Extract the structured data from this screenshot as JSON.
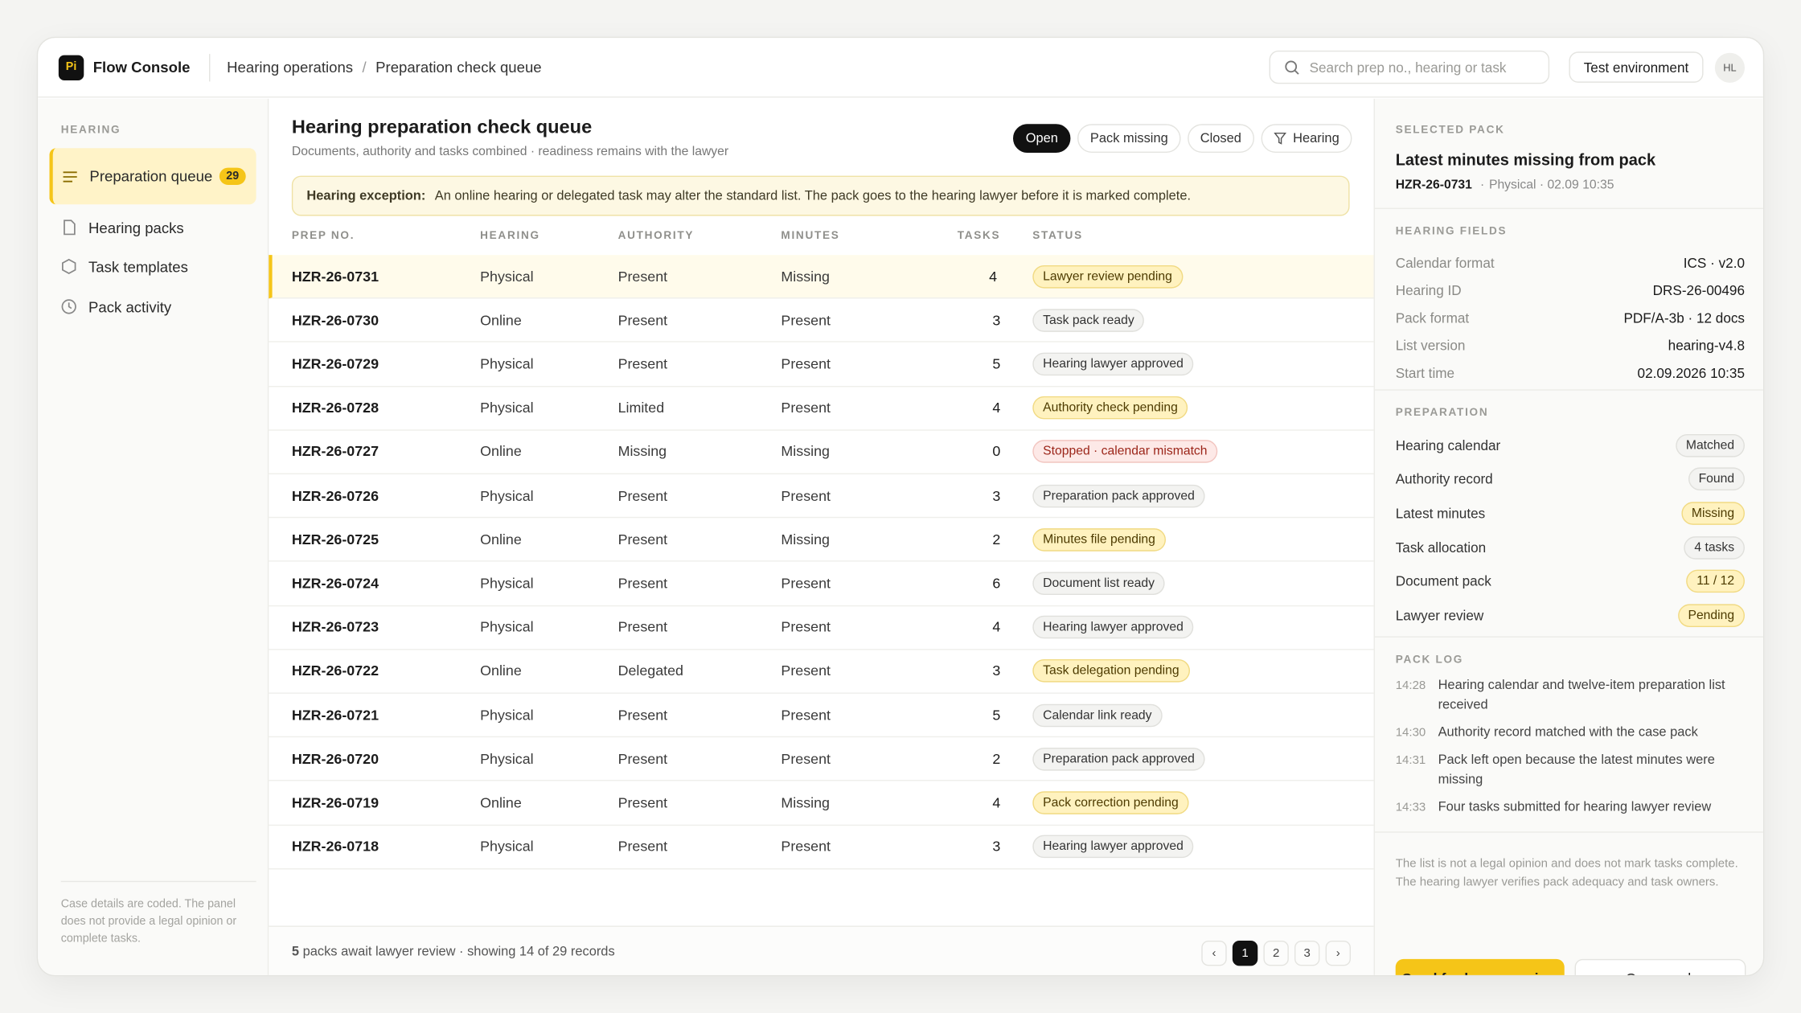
{
  "header": {
    "brand_mark": "Pi",
    "brand": "Flow Console",
    "breadcrumb": [
      "Hearing operations",
      "Preparation check queue"
    ],
    "breadcrumb_separator": "/",
    "search_placeholder": "Search prep no., hearing or task",
    "environment": "Test environment",
    "user_initials": "HL"
  },
  "sidebar": {
    "section": "HEARING",
    "nav": [
      {
        "label": "Preparation queue",
        "badge": 29
      },
      {
        "label": "Hearing packs"
      },
      {
        "label": "Task templates"
      },
      {
        "label": "Pack activity"
      }
    ],
    "active": 0,
    "footnote": "Case details are coded. The panel does not provide a legal opinion or complete tasks."
  },
  "queue": {
    "title": "Hearing preparation check queue",
    "subtitle": "Documents, authority and tasks combined · readiness remains with the lawyer",
    "filters": [
      "Open",
      "Pack missing",
      "Closed",
      "Hearing"
    ],
    "active_filter": 0,
    "banner": {
      "label": "Hearing exception:",
      "text": "An online hearing or delegated task may alter the standard list. The pack goes to the hearing lawyer before it is marked complete."
    },
    "columns": [
      "PREP NO.",
      "HEARING",
      "AUTHORITY",
      "MINUTES",
      "TASKS",
      "STATUS"
    ],
    "selected_row": 0,
    "rows": [
      [
        "HZR-26-0731",
        "Physical",
        "Present",
        "Missing",
        4,
        "Lawyer review pending",
        "amber"
      ],
      [
        "HZR-26-0730",
        "Online",
        "Present",
        "Present",
        3,
        "Task pack ready",
        "gray"
      ],
      [
        "HZR-26-0729",
        "Physical",
        "Present",
        "Present",
        5,
        "Hearing lawyer approved",
        "gray"
      ],
      [
        "HZR-26-0728",
        "Physical",
        "Limited",
        "Present",
        4,
        "Authority check pending",
        "amber"
      ],
      [
        "HZR-26-0727",
        "Online",
        "Missing",
        "Missing",
        0,
        "Stopped · calendar mismatch",
        "red"
      ],
      [
        "HZR-26-0726",
        "Physical",
        "Present",
        "Present",
        3,
        "Preparation pack approved",
        "gray"
      ],
      [
        "HZR-26-0725",
        "Online",
        "Present",
        "Missing",
        2,
        "Minutes file pending",
        "amber"
      ],
      [
        "HZR-26-0724",
        "Physical",
        "Present",
        "Present",
        6,
        "Document list ready",
        "gray"
      ],
      [
        "HZR-26-0723",
        "Physical",
        "Present",
        "Present",
        4,
        "Hearing lawyer approved",
        "gray"
      ],
      [
        "HZR-26-0722",
        "Online",
        "Delegated",
        "Present",
        3,
        "Task delegation pending",
        "amber"
      ],
      [
        "HZR-26-0721",
        "Physical",
        "Present",
        "Present",
        5,
        "Calendar link ready",
        "gray"
      ],
      [
        "HZR-26-0720",
        "Physical",
        "Present",
        "Present",
        2,
        "Preparation pack approved",
        "gray"
      ],
      [
        "HZR-26-0719",
        "Online",
        "Present",
        "Missing",
        4,
        "Pack correction pending",
        "amber"
      ],
      [
        "HZR-26-0718",
        "Physical",
        "Present",
        "Present",
        3,
        "Hearing lawyer approved",
        "gray"
      ]
    ],
    "footer": {
      "count": 5,
      "text": "packs await lawyer review · showing 14 of 29 records",
      "prev": "‹",
      "pages": [
        1,
        2,
        3
      ],
      "current_page": 0,
      "next": "›"
    }
  },
  "panel": {
    "section": "SELECTED PACK",
    "title": "Latest minutes missing from pack",
    "prep_no": "HZR-26-0731",
    "meta": "Physical · 02.09 10:35",
    "fields_title": "HEARING FIELDS",
    "fields": [
      [
        "Calendar format",
        "ICS · v2.0"
      ],
      [
        "Hearing ID",
        "DRS-26-00496"
      ],
      [
        "Pack format",
        "PDF/A-3b · 12 docs"
      ],
      [
        "List version",
        "hearing-v4.8"
      ],
      [
        "Start time",
        "02.09.2026 10:35"
      ]
    ],
    "prep_title": "PREPARATION",
    "prep": [
      [
        "Hearing calendar",
        "Matched",
        "gray"
      ],
      [
        "Authority record",
        "Found",
        "gray"
      ],
      [
        "Latest minutes",
        "Missing",
        "amber"
      ],
      [
        "Task allocation",
        "4 tasks",
        "gray"
      ],
      [
        "Document pack",
        "11 / 12",
        "amber"
      ],
      [
        "Lawyer review",
        "Pending",
        "amber"
      ]
    ],
    "log_title": "PACK LOG",
    "log": [
      [
        "14:28",
        "Hearing calendar and twelve-item preparation list received"
      ],
      [
        "14:30",
        "Authority record matched with the case pack"
      ],
      [
        "14:31",
        "Pack left open because the latest minutes were missing"
      ],
      [
        "14:33",
        "Four tasks submitted for hearing lawyer review"
      ]
    ],
    "note": "The list is not a legal opinion and does not mark tasks complete. The hearing lawyer verifies pack adequacy and task owners.",
    "primary_action": "Send for lawyer review",
    "secondary_action": "Open pack"
  }
}
